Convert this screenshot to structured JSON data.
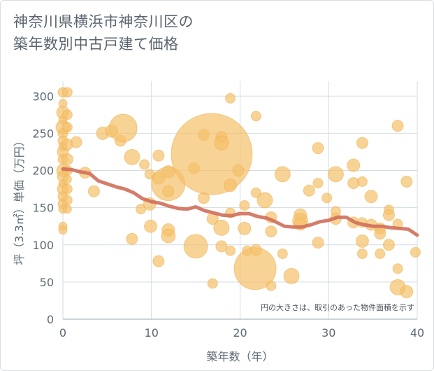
{
  "title_line1": "神奈川県横浜市神奈川区の",
  "title_line2": "築年数別中古戸建て価格",
  "chart_data": {
    "type": "scatter",
    "xlabel": "築年数（年）",
    "ylabel": "坪（3.3㎡）単価（万円）",
    "xlim": [
      0,
      40
    ],
    "ylim": [
      0,
      320
    ],
    "xticks": [
      0,
      10,
      20,
      30,
      40
    ],
    "yticks": [
      0,
      50,
      100,
      150,
      200,
      250,
      300
    ],
    "grid": true,
    "note": "円の大きさは、取引のあった物件面積を示す",
    "colors": {
      "bubble": "#f5c06a",
      "line": "#d06f5a",
      "grid": "#d3dbe2",
      "text": "#5c6a74"
    },
    "points": [
      {
        "x": 0,
        "y": 305,
        "size": 7
      },
      {
        "x": 0,
        "y": 290,
        "size": 6
      },
      {
        "x": 0,
        "y": 278,
        "size": 9
      },
      {
        "x": 0,
        "y": 268,
        "size": 6
      },
      {
        "x": 0,
        "y": 258,
        "size": 10
      },
      {
        "x": 0,
        "y": 250,
        "size": 7
      },
      {
        "x": 0,
        "y": 240,
        "size": 7
      },
      {
        "x": 0,
        "y": 232,
        "size": 6
      },
      {
        "x": 0,
        "y": 225,
        "size": 8
      },
      {
        "x": 0,
        "y": 215,
        "size": 7
      },
      {
        "x": 0,
        "y": 200,
        "size": 9
      },
      {
        "x": 0,
        "y": 192,
        "size": 8
      },
      {
        "x": 0,
        "y": 182,
        "size": 6
      },
      {
        "x": 0,
        "y": 175,
        "size": 8
      },
      {
        "x": 0,
        "y": 165,
        "size": 7
      },
      {
        "x": 0,
        "y": 155,
        "size": 7
      },
      {
        "x": 0,
        "y": 148,
        "size": 6
      },
      {
        "x": 0,
        "y": 125,
        "size": 6
      },
      {
        "x": 0,
        "y": 120,
        "size": 6
      },
      {
        "x": 0.5,
        "y": 305,
        "size": 7
      },
      {
        "x": 0.5,
        "y": 275,
        "size": 7
      },
      {
        "x": 0.5,
        "y": 258,
        "size": 7
      },
      {
        "x": 0.5,
        "y": 235,
        "size": 8
      },
      {
        "x": 0.5,
        "y": 215,
        "size": 8
      },
      {
        "x": 0.5,
        "y": 200,
        "size": 7
      },
      {
        "x": 0.5,
        "y": 188,
        "size": 6
      },
      {
        "x": 0.5,
        "y": 175,
        "size": 7
      },
      {
        "x": 0.5,
        "y": 160,
        "size": 7
      },
      {
        "x": 0.5,
        "y": 148,
        "size": 6
      },
      {
        "x": 1.5,
        "y": 238,
        "size": 8
      },
      {
        "x": 2.5,
        "y": 197,
        "size": 8
      },
      {
        "x": 3.5,
        "y": 172,
        "size": 8
      },
      {
        "x": 4.5,
        "y": 250,
        "size": 9
      },
      {
        "x": 5.5,
        "y": 253,
        "size": 9
      },
      {
        "x": 6.5,
        "y": 240,
        "size": 8
      },
      {
        "x": 6.8,
        "y": 257,
        "size": 20
      },
      {
        "x": 7.8,
        "y": 218,
        "size": 11
      },
      {
        "x": 7.8,
        "y": 108,
        "size": 8
      },
      {
        "x": 8.8,
        "y": 148,
        "size": 7
      },
      {
        "x": 9.2,
        "y": 208,
        "size": 7
      },
      {
        "x": 9.8,
        "y": 195,
        "size": 7
      },
      {
        "x": 9.8,
        "y": 155,
        "size": 9
      },
      {
        "x": 9.9,
        "y": 125,
        "size": 9
      },
      {
        "x": 10.8,
        "y": 220,
        "size": 8
      },
      {
        "x": 10.8,
        "y": 190,
        "size": 9
      },
      {
        "x": 10.8,
        "y": 78,
        "size": 8
      },
      {
        "x": 11.9,
        "y": 198,
        "size": 9
      },
      {
        "x": 11.9,
        "y": 182,
        "size": 24
      },
      {
        "x": 11.9,
        "y": 172,
        "size": 8
      },
      {
        "x": 11.9,
        "y": 120,
        "size": 9
      },
      {
        "x": 11.9,
        "y": 112,
        "size": 10
      },
      {
        "x": 14.8,
        "y": 203,
        "size": 8
      },
      {
        "x": 15.0,
        "y": 98,
        "size": 17
      },
      {
        "x": 15.9,
        "y": 248,
        "size": 8
      },
      {
        "x": 15.9,
        "y": 163,
        "size": 8
      },
      {
        "x": 16.8,
        "y": 222,
        "size": 58
      },
      {
        "x": 16.9,
        "y": 135,
        "size": 8
      },
      {
        "x": 16.9,
        "y": 48,
        "size": 7
      },
      {
        "x": 17.9,
        "y": 245,
        "size": 8
      },
      {
        "x": 17.9,
        "y": 237,
        "size": 10
      },
      {
        "x": 17.9,
        "y": 123,
        "size": 11
      },
      {
        "x": 17.9,
        "y": 98,
        "size": 8
      },
      {
        "x": 18.9,
        "y": 297,
        "size": 7
      },
      {
        "x": 18.9,
        "y": 180,
        "size": 9
      },
      {
        "x": 18.9,
        "y": 143,
        "size": 7
      },
      {
        "x": 18.9,
        "y": 92,
        "size": 7
      },
      {
        "x": 19.8,
        "y": 200,
        "size": 8
      },
      {
        "x": 20.5,
        "y": 153,
        "size": 7
      },
      {
        "x": 20.5,
        "y": 122,
        "size": 9
      },
      {
        "x": 20.8,
        "y": 92,
        "size": 7
      },
      {
        "x": 21.8,
        "y": 273,
        "size": 7
      },
      {
        "x": 21.8,
        "y": 170,
        "size": 7
      },
      {
        "x": 21.8,
        "y": 93,
        "size": 8
      },
      {
        "x": 21.7,
        "y": 68,
        "size": 30
      },
      {
        "x": 22.8,
        "y": 160,
        "size": 11
      },
      {
        "x": 23.5,
        "y": 137,
        "size": 8
      },
      {
        "x": 23.5,
        "y": 118,
        "size": 8
      },
      {
        "x": 23.5,
        "y": 45,
        "size": 7
      },
      {
        "x": 24.8,
        "y": 195,
        "size": 11
      },
      {
        "x": 24.8,
        "y": 88,
        "size": 7
      },
      {
        "x": 25.8,
        "y": 58,
        "size": 11
      },
      {
        "x": 26.8,
        "y": 140,
        "size": 9
      },
      {
        "x": 26.8,
        "y": 132,
        "size": 11
      },
      {
        "x": 26.8,
        "y": 128,
        "size": 9
      },
      {
        "x": 27.8,
        "y": 173,
        "size": 8
      },
      {
        "x": 28.8,
        "y": 230,
        "size": 8
      },
      {
        "x": 28.8,
        "y": 183,
        "size": 7
      },
      {
        "x": 28.8,
        "y": 103,
        "size": 8
      },
      {
        "x": 29.8,
        "y": 163,
        "size": 7
      },
      {
        "x": 30.8,
        "y": 195,
        "size": 11
      },
      {
        "x": 30.8,
        "y": 145,
        "size": 7
      },
      {
        "x": 30.8,
        "y": 135,
        "size": 8
      },
      {
        "x": 32.8,
        "y": 207,
        "size": 9
      },
      {
        "x": 32.8,
        "y": 183,
        "size": 8
      },
      {
        "x": 32.8,
        "y": 130,
        "size": 8
      },
      {
        "x": 33.8,
        "y": 237,
        "size": 8
      },
      {
        "x": 33.8,
        "y": 185,
        "size": 7
      },
      {
        "x": 33.8,
        "y": 130,
        "size": 7
      },
      {
        "x": 33.8,
        "y": 105,
        "size": 9
      },
      {
        "x": 33.8,
        "y": 88,
        "size": 7
      },
      {
        "x": 34.8,
        "y": 165,
        "size": 9
      },
      {
        "x": 34.8,
        "y": 127,
        "size": 8
      },
      {
        "x": 35.8,
        "y": 122,
        "size": 8
      },
      {
        "x": 35.8,
        "y": 115,
        "size": 8
      },
      {
        "x": 35.8,
        "y": 88,
        "size": 7
      },
      {
        "x": 36.8,
        "y": 147,
        "size": 7
      },
      {
        "x": 36.8,
        "y": 140,
        "size": 8
      },
      {
        "x": 36.8,
        "y": 100,
        "size": 8
      },
      {
        "x": 37.8,
        "y": 260,
        "size": 8
      },
      {
        "x": 37.8,
        "y": 128,
        "size": 7
      },
      {
        "x": 37.8,
        "y": 68,
        "size": 7
      },
      {
        "x": 37.8,
        "y": 43,
        "size": 11
      },
      {
        "x": 38.8,
        "y": 185,
        "size": 8
      },
      {
        "x": 38.8,
        "y": 37,
        "size": 9
      },
      {
        "x": 39.8,
        "y": 90,
        "size": 7
      }
    ],
    "trend": {
      "x": [
        0,
        1,
        2,
        3,
        4,
        5,
        6,
        7,
        8,
        9,
        10,
        11,
        12,
        13,
        14,
        15,
        16,
        17,
        18,
        19,
        20,
        21,
        22,
        23,
        24,
        25,
        26,
        27,
        28,
        29,
        30,
        31,
        32,
        33,
        34,
        35,
        36,
        37,
        38,
        39,
        40
      ],
      "y": [
        202,
        201,
        198,
        196,
        186,
        182,
        178,
        175,
        170,
        162,
        158,
        156,
        152,
        149,
        148,
        151,
        146,
        143,
        140,
        139,
        142,
        142,
        138,
        136,
        131,
        125,
        124,
        124,
        127,
        131,
        133,
        137,
        137,
        130,
        127,
        125,
        125,
        123,
        122,
        121,
        113
      ]
    }
  }
}
